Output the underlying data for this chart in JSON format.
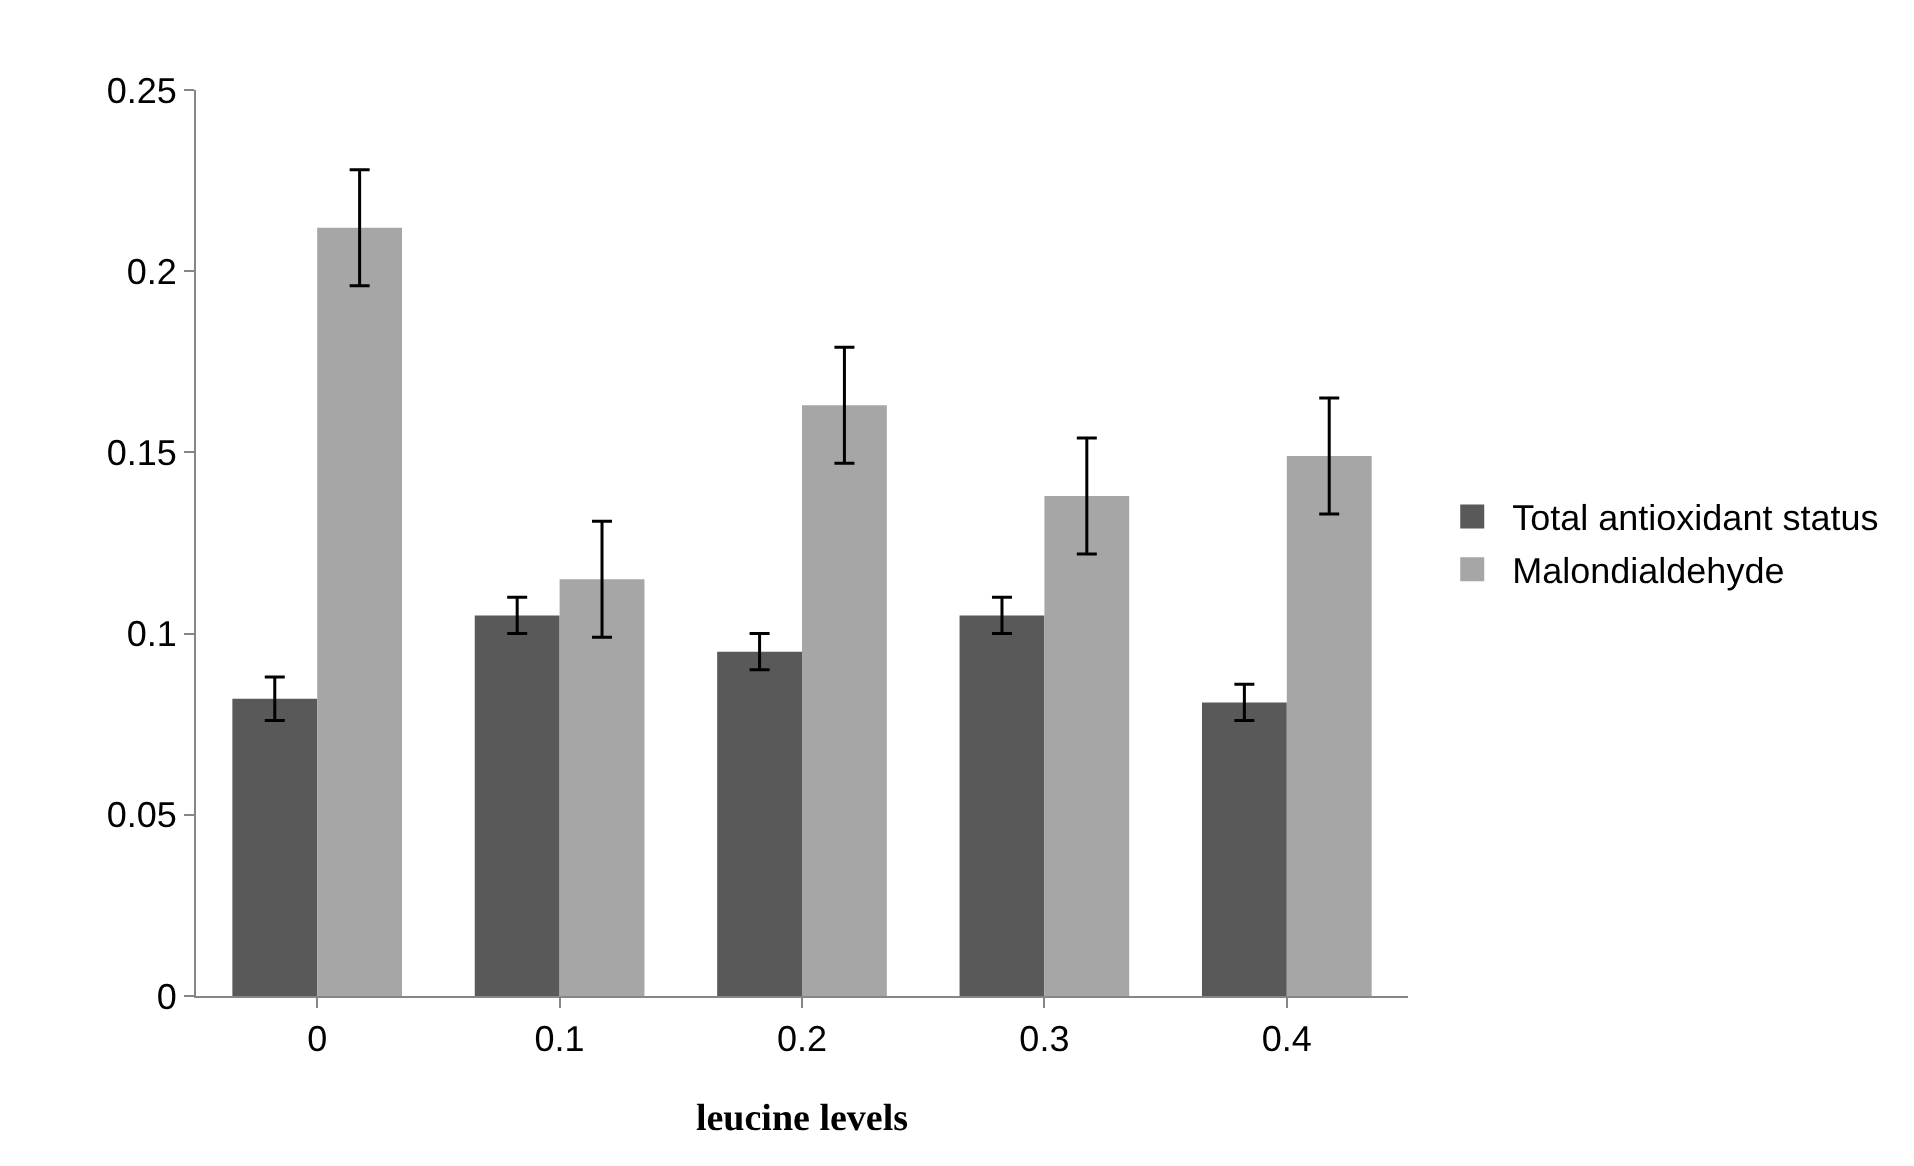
{
  "chart_data": {
    "type": "bar",
    "xlabel": "leucine levels",
    "categories": [
      "0",
      "0.1",
      "0.2",
      "0.3",
      "0.4"
    ],
    "series": [
      {
        "name": "Total antioxidant status",
        "color": "#595959",
        "values": [
          0.082,
          0.105,
          0.095,
          0.105,
          0.081
        ],
        "errors": [
          0.006,
          0.005,
          0.005,
          0.005,
          0.005
        ]
      },
      {
        "name": "Malondialdehyde",
        "color": "#a6a6a6",
        "values": [
          0.212,
          0.115,
          0.163,
          0.138,
          0.149
        ],
        "errors": [
          0.016,
          0.016,
          0.016,
          0.016,
          0.016
        ]
      }
    ],
    "ylim": [
      0,
      0.25
    ],
    "yticks": [
      0,
      0.05,
      0.1,
      0.15,
      0.2,
      0.25
    ],
    "grid": false,
    "legend": "right"
  }
}
